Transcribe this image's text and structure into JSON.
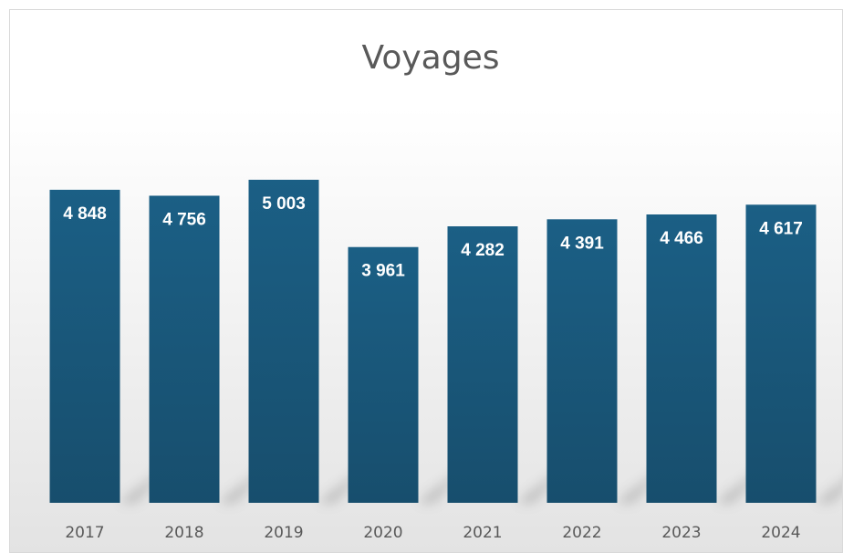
{
  "chart_data": {
    "type": "bar",
    "title": "Voyages",
    "categories": [
      "2017",
      "2018",
      "2019",
      "2020",
      "2021",
      "2022",
      "2023",
      "2024"
    ],
    "values": [
      4848,
      4756,
      5003,
      3961,
      4282,
      4391,
      4466,
      4617
    ],
    "value_labels": [
      "4 848",
      "4 756",
      "5 003",
      "3 961",
      "4 282",
      "4 391",
      "4 466",
      "4 617"
    ],
    "xlabel": "",
    "ylabel": "",
    "ylim": [
      0,
      5003
    ],
    "grid": false,
    "legend": "none",
    "colors": {
      "bar_top": "#1b5f85",
      "bar_bottom": "#174e6d",
      "text": "#595959",
      "label": "#ffffff"
    }
  }
}
